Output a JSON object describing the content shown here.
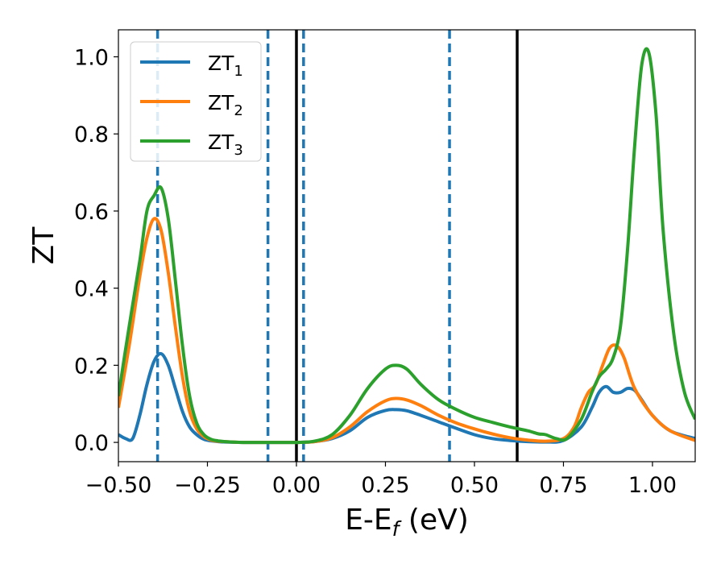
{
  "chart_data": {
    "type": "line",
    "title": "",
    "xlabel_main": "E-E",
    "xlabel_sub": "f",
    "xlabel_unit": " (eV)",
    "ylabel": "ZT",
    "xlim": [
      -0.5,
      1.12
    ],
    "ylim": [
      -0.05,
      1.07
    ],
    "grid": false,
    "legend_position": "top-left",
    "x_ticks": [
      -0.5,
      -0.25,
      0.0,
      0.25,
      0.5,
      0.75,
      1.0
    ],
    "x_tick_labels": [
      "−0.50",
      "−0.25",
      "0.00",
      "0.25",
      "0.50",
      "0.75",
      "1.00"
    ],
    "y_ticks": [
      0.0,
      0.2,
      0.4,
      0.6,
      0.8,
      1.0
    ],
    "y_tick_labels": [
      "0.0",
      "0.2",
      "0.4",
      "0.6",
      "0.8",
      "1.0"
    ],
    "vlines_solid": [
      0.0,
      0.62
    ],
    "vlines_dashed": [
      -0.39,
      -0.08,
      0.02,
      0.43
    ],
    "series": [
      {
        "name_main": "ZT",
        "name_sub": "1",
        "color": "#1f77b4",
        "x": [
          -0.5,
          -0.48,
          -0.46,
          -0.44,
          -0.42,
          -0.4,
          -0.38,
          -0.36,
          -0.34,
          -0.32,
          -0.3,
          -0.28,
          -0.26,
          -0.24,
          -0.22,
          -0.2,
          -0.15,
          -0.1,
          -0.05,
          0.0,
          0.05,
          0.1,
          0.15,
          0.2,
          0.25,
          0.28,
          0.31,
          0.35,
          0.4,
          0.45,
          0.5,
          0.55,
          0.6,
          0.65,
          0.7,
          0.75,
          0.8,
          0.83,
          0.85,
          0.87,
          0.89,
          0.91,
          0.93,
          0.95,
          0.97,
          1.0,
          1.05,
          1.12
        ],
        "y": [
          0.02,
          0.01,
          0.01,
          0.07,
          0.15,
          0.21,
          0.23,
          0.2,
          0.14,
          0.08,
          0.04,
          0.02,
          0.008,
          0.004,
          0.002,
          0.001,
          0.0,
          0.0,
          0.0,
          0.0,
          0.002,
          0.01,
          0.03,
          0.065,
          0.083,
          0.085,
          0.082,
          0.07,
          0.053,
          0.036,
          0.02,
          0.01,
          0.005,
          0.002,
          0.001,
          0.005,
          0.04,
          0.09,
          0.13,
          0.145,
          0.13,
          0.13,
          0.14,
          0.135,
          0.11,
          0.07,
          0.03,
          0.01
        ]
      },
      {
        "name_main": "ZT",
        "name_sub": "2",
        "color": "#ff7f0e",
        "x": [
          -0.5,
          -0.47,
          -0.44,
          -0.42,
          -0.4,
          -0.38,
          -0.36,
          -0.34,
          -0.32,
          -0.3,
          -0.28,
          -0.26,
          -0.24,
          -0.22,
          -0.2,
          -0.15,
          -0.1,
          -0.05,
          0.0,
          0.05,
          0.1,
          0.15,
          0.2,
          0.25,
          0.28,
          0.31,
          0.35,
          0.4,
          0.45,
          0.5,
          0.55,
          0.6,
          0.65,
          0.7,
          0.75,
          0.78,
          0.8,
          0.82,
          0.84,
          0.86,
          0.88,
          0.9,
          0.92,
          0.95,
          1.0,
          1.05,
          1.12
        ],
        "y": [
          0.09,
          0.25,
          0.43,
          0.53,
          0.58,
          0.55,
          0.44,
          0.3,
          0.17,
          0.08,
          0.035,
          0.015,
          0.006,
          0.003,
          0.002,
          0.0,
          0.0,
          0.0,
          0.0,
          0.002,
          0.012,
          0.04,
          0.08,
          0.108,
          0.114,
          0.11,
          0.095,
          0.07,
          0.05,
          0.035,
          0.022,
          0.012,
          0.006,
          0.003,
          0.01,
          0.04,
          0.09,
          0.13,
          0.15,
          0.2,
          0.245,
          0.25,
          0.22,
          0.14,
          0.07,
          0.03,
          0.005
        ]
      },
      {
        "name_main": "ZT",
        "name_sub": "3",
        "color": "#2ca02c",
        "x": [
          -0.5,
          -0.47,
          -0.44,
          -0.42,
          -0.4,
          -0.38,
          -0.36,
          -0.34,
          -0.32,
          -0.3,
          -0.28,
          -0.26,
          -0.24,
          -0.22,
          -0.2,
          -0.15,
          -0.1,
          -0.05,
          0.0,
          0.05,
          0.1,
          0.15,
          0.2,
          0.25,
          0.28,
          0.31,
          0.35,
          0.4,
          0.45,
          0.5,
          0.55,
          0.6,
          0.65,
          0.68,
          0.7,
          0.73,
          0.76,
          0.8,
          0.83,
          0.85,
          0.87,
          0.89,
          0.91,
          0.93,
          0.95,
          0.97,
          0.99,
          1.01,
          1.03,
          1.06,
          1.09,
          1.12
        ],
        "y": [
          0.12,
          0.3,
          0.47,
          0.6,
          0.64,
          0.66,
          0.58,
          0.42,
          0.25,
          0.12,
          0.05,
          0.02,
          0.008,
          0.004,
          0.002,
          0.0,
          0.0,
          0.0,
          0.0,
          0.003,
          0.02,
          0.07,
          0.14,
          0.19,
          0.2,
          0.19,
          0.15,
          0.11,
          0.085,
          0.065,
          0.052,
          0.04,
          0.03,
          0.022,
          0.02,
          0.01,
          0.01,
          0.06,
          0.13,
          0.17,
          0.19,
          0.22,
          0.3,
          0.5,
          0.77,
          0.98,
          1.01,
          0.85,
          0.55,
          0.28,
          0.13,
          0.06
        ]
      }
    ]
  }
}
